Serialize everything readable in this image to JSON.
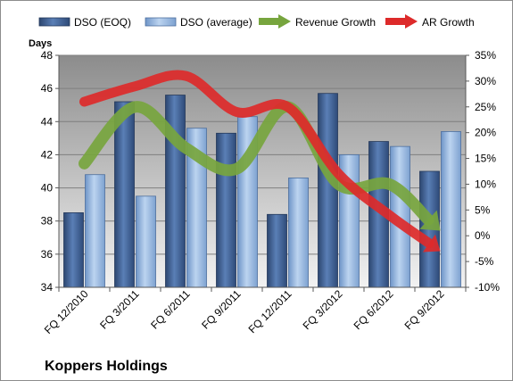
{
  "chart_data": {
    "type": "bar",
    "company": "Koppers Holdings",
    "categories": [
      "FQ 12/2010",
      "FQ 3/2011",
      "FQ 6/2011",
      "FQ 9/2011",
      "FQ 12/2011",
      "FQ 3/2012",
      "FQ 6/2012",
      "FQ 9/2012"
    ],
    "ylabel": "Days",
    "ylim": [
      34,
      48
    ],
    "yticks": [
      34,
      36,
      38,
      40,
      42,
      44,
      46,
      48
    ],
    "y2lim": [
      -10,
      35
    ],
    "y2ticks": [
      "-10%",
      "-5%",
      "0%",
      "5%",
      "10%",
      "15%",
      "20%",
      "25%",
      "30%",
      "35%"
    ],
    "series": [
      {
        "name": "DSO (EOQ)",
        "type": "bar",
        "axis": "left",
        "color": "#4a6a9c",
        "values": [
          38.5,
          45.2,
          45.6,
          43.3,
          38.4,
          45.7,
          42.8,
          41.0
        ]
      },
      {
        "name": "DSO (average)",
        "type": "bar",
        "axis": "left",
        "color": "#9ab8e0",
        "values": [
          40.8,
          39.5,
          43.6,
          44.3,
          40.6,
          42.0,
          42.5,
          43.4
        ]
      },
      {
        "name": "Revenue Growth",
        "type": "line-arrow",
        "axis": "right",
        "unit": "%",
        "color": "#77a53e",
        "values": [
          14,
          25,
          17,
          13,
          25,
          10,
          10,
          1
        ]
      },
      {
        "name": "AR Growth",
        "type": "line-arrow",
        "axis": "right",
        "unit": "%",
        "color": "#dd2a2a",
        "values": [
          26,
          29,
          31,
          24,
          25,
          12,
          4,
          -3
        ]
      }
    ],
    "legend": "top",
    "grid": true
  }
}
